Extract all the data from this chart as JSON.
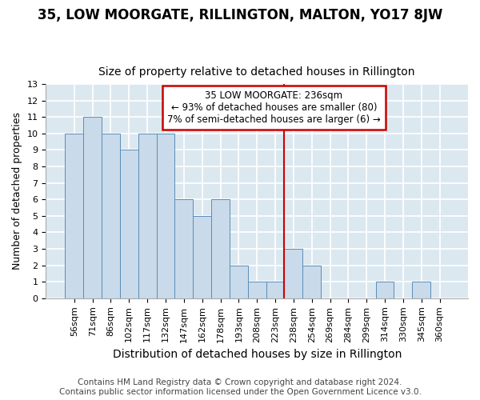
{
  "title": "35, LOW MOORGATE, RILLINGTON, MALTON, YO17 8JW",
  "subtitle": "Size of property relative to detached houses in Rillington",
  "xlabel": "Distribution of detached houses by size in Rillington",
  "ylabel": "Number of detached properties",
  "categories": [
    "56sqm",
    "71sqm",
    "86sqm",
    "102sqm",
    "117sqm",
    "132sqm",
    "147sqm",
    "162sqm",
    "178sqm",
    "193sqm",
    "208sqm",
    "223sqm",
    "238sqm",
    "254sqm",
    "269sqm",
    "284sqm",
    "299sqm",
    "314sqm",
    "330sqm",
    "345sqm",
    "360sqm"
  ],
  "values": [
    10,
    11,
    10,
    9,
    10,
    10,
    6,
    5,
    6,
    2,
    1,
    1,
    3,
    2,
    0,
    0,
    0,
    1,
    0,
    1,
    0
  ],
  "bar_color": "#c9daea",
  "bar_edge_color": "#5b8db8",
  "vline_x_index": 12,
  "vline_color": "#cc0000",
  "annotation_title": "35 LOW MOORGATE: 236sqm",
  "annotation_line1": "← 93% of detached houses are smaller (80)",
  "annotation_line2": "7% of semi-detached houses are larger (6) →",
  "annotation_box_color": "#cc0000",
  "ylim": [
    0,
    13
  ],
  "yticks": [
    0,
    1,
    2,
    3,
    4,
    5,
    6,
    7,
    8,
    9,
    10,
    11,
    12,
    13
  ],
  "footer_line1": "Contains HM Land Registry data © Crown copyright and database right 2024.",
  "footer_line2": "Contains public sector information licensed under the Open Government Licence v3.0.",
  "background_color": "#dce8f0",
  "grid_color": "#ffffff",
  "title_fontsize": 12,
  "subtitle_fontsize": 10,
  "tick_fontsize": 8,
  "ylabel_fontsize": 9,
  "xlabel_fontsize": 10,
  "footer_fontsize": 7.5,
  "fig_facecolor": "#ffffff"
}
